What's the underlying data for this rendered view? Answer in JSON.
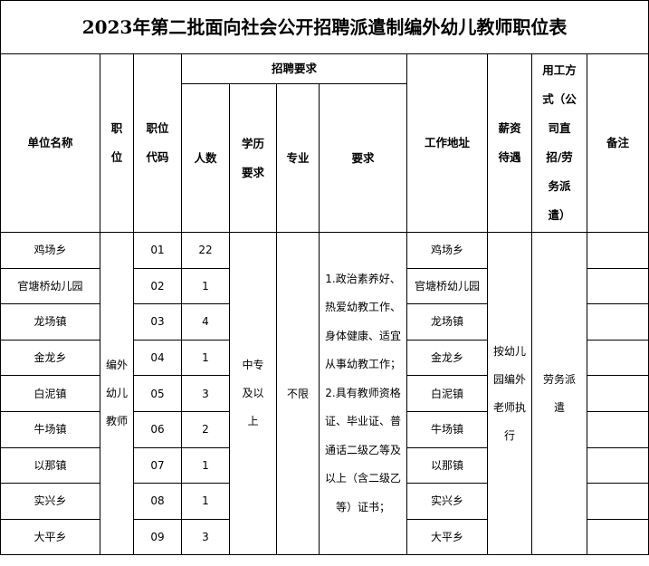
{
  "title": "2023年第二批面向社会公开招聘派遣制编外幼儿教师职位表",
  "headers": {
    "unit": "单位名称",
    "position": "职位",
    "code": "职位代码",
    "requirements_group": "招聘要求",
    "count": "人数",
    "education": "学历要求",
    "major": "专业",
    "requirements": "要求",
    "work_address": "工作地址",
    "salary": "薪资待遇",
    "employment": "用工方式（公司直招/劳务派遣）",
    "remarks": "备注"
  },
  "rows": [
    {
      "unit": "鸡场乡",
      "code": "01",
      "count": "22",
      "address": "鸡场乡"
    },
    {
      "unit": "官塘桥幼儿园",
      "code": "02",
      "count": "1",
      "address": "官塘桥幼儿园"
    },
    {
      "unit": "龙场镇",
      "code": "03",
      "count": "4",
      "address": "龙场镇"
    },
    {
      "unit": "金龙乡",
      "code": "04",
      "count": "1",
      "address": "金龙乡"
    },
    {
      "unit": "白泥镇",
      "code": "05",
      "count": "3",
      "address": "白泥镇"
    },
    {
      "unit": "牛场镇",
      "code": "06",
      "count": "2",
      "address": "牛场镇"
    },
    {
      "unit": "以那镇",
      "code": "07",
      "count": "1",
      "address": "以那镇"
    },
    {
      "unit": "实兴乡",
      "code": "08",
      "count": "1",
      "address": "实兴乡"
    },
    {
      "unit": "大平乡",
      "code": "09",
      "count": "3",
      "address": "大平乡"
    }
  ],
  "shared": {
    "position": "编外幼儿教师",
    "education": "中专及以上",
    "major": "不限",
    "requirements": "1.政治素养好、热爱幼教工作、身体健康、适宜从事幼教工作；2.具有教师资格证、毕业证、普通话二级乙等及以上（含二级乙等）证书；",
    "salary": "按幼儿园编外老师执行",
    "employment": "劳务派遣"
  }
}
